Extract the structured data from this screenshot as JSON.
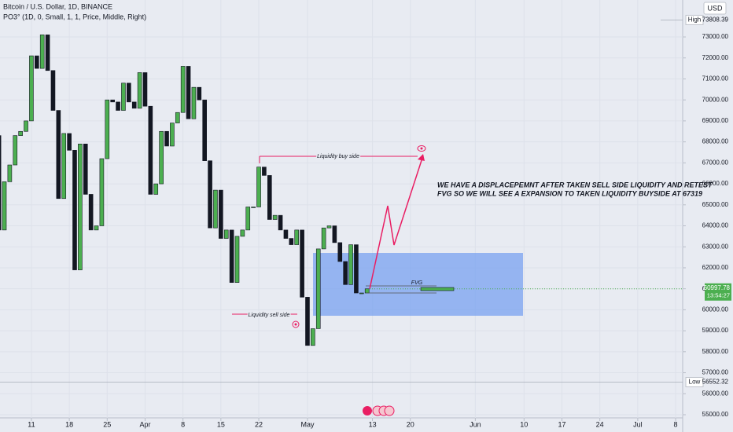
{
  "header": {
    "title": "Bitcoin / U.S. Dollar, 1D, BINANCE",
    "indicator": "PO3° (1D, 0, Small, 1, 1, Price, Middle, Right)"
  },
  "chart_data": {
    "type": "candlestick",
    "currency": "USD",
    "x": [
      -6,
      -5,
      -4,
      -3,
      -2,
      -1,
      0,
      1,
      2,
      3,
      4,
      5,
      6,
      7,
      8,
      9,
      10,
      11,
      12,
      13,
      14,
      15,
      16,
      17,
      18,
      19,
      20,
      21,
      22,
      23,
      24,
      25,
      26,
      27,
      28,
      29,
      30,
      31,
      32,
      33,
      34,
      35,
      36,
      37,
      38,
      39,
      40,
      41,
      42,
      43,
      44,
      45,
      46,
      47,
      48,
      49,
      50,
      51,
      52,
      53,
      54,
      55,
      56,
      57,
      58,
      59,
      60,
      61,
      62
    ],
    "open": [
      68300,
      63800,
      66100,
      66900,
      68300,
      68500,
      69000,
      72100,
      71500,
      73100,
      71400,
      69500,
      65300,
      68400,
      67600,
      61900,
      67900,
      65500,
      63800,
      64000,
      67200,
      70000,
      69900,
      69500,
      70800,
      69900,
      69600,
      71300,
      69700,
      65500,
      66000,
      68500,
      67800,
      68900,
      69400,
      71600,
      69100,
      70600,
      70000,
      67100,
      63900,
      65700,
      63400,
      63800,
      61300,
      63500,
      63800,
      64900,
      64900,
      66800,
      66400,
      64300,
      64500,
      63800,
      63400,
      63100,
      63800,
      60600,
      58300,
      59100,
      62900,
      63900,
      64000,
      63200,
      62300,
      61200,
      63100,
      60800,
      60800
    ],
    "high": {
      "label": "High",
      "value": 73808.39
    },
    "low": {
      "label": "Low",
      "value": 56552.32
    },
    "close": [
      63800,
      66100,
      66900,
      68300,
      68500,
      69000,
      72100,
      71500,
      73100,
      71400,
      69500,
      65300,
      68400,
      67600,
      61900,
      67900,
      65500,
      63800,
      64000,
      67200,
      70000,
      69900,
      69500,
      70800,
      69900,
      69600,
      71300,
      69700,
      65500,
      66000,
      68500,
      67800,
      68900,
      69400,
      71600,
      69100,
      70600,
      70000,
      67100,
      63900,
      65700,
      63400,
      63800,
      61300,
      63500,
      63800,
      64900,
      64900,
      66800,
      66400,
      64300,
      64500,
      63800,
      63400,
      63100,
      63800,
      60600,
      58300,
      59100,
      62900,
      63900,
      64000,
      63200,
      62300,
      61200,
      63100,
      60800,
      60800,
      60997.78
    ],
    "up_color": "#4caf50",
    "down_color": "#131722",
    "xlim": [
      -5.8,
      120.3
    ],
    "xticks": [
      {
        "value": 0,
        "label": "11"
      },
      {
        "value": 7,
        "label": "18"
      },
      {
        "value": 14,
        "label": "25"
      },
      {
        "value": 21,
        "label": "Apr"
      },
      {
        "value": 28,
        "label": "8"
      },
      {
        "value": 35,
        "label": "15"
      },
      {
        "value": 42,
        "label": "22"
      },
      {
        "value": 51,
        "label": "May"
      },
      {
        "value": 63,
        "label": "13"
      },
      {
        "value": 70,
        "label": "20"
      },
      {
        "value": 82,
        "label": "Jun"
      },
      {
        "value": 91,
        "label": "10"
      },
      {
        "value": 98,
        "label": "17"
      },
      {
        "value": 105,
        "label": "24"
      },
      {
        "value": 112,
        "label": "Jul"
      },
      {
        "value": 119,
        "label": "8"
      }
    ],
    "ylim": [
      54850,
      74760
    ],
    "yticks": [
      {
        "value": 55000,
        "label": "55000.00"
      },
      {
        "value": 56000,
        "label": "56000.00"
      },
      {
        "value": 57000,
        "label": "57000.00"
      },
      {
        "value": 58000,
        "label": "58000.00"
      },
      {
        "value": 59000,
        "label": "59000.00"
      },
      {
        "value": 60000,
        "label": "60000.00"
      },
      {
        "value": 61000,
        "label": "61000.00"
      },
      {
        "value": 62000,
        "label": "62000.00"
      },
      {
        "value": 63000,
        "label": "63000.00"
      },
      {
        "value": 64000,
        "label": "64000.00"
      },
      {
        "value": 65000,
        "label": "65000.00"
      },
      {
        "value": 66000,
        "label": "66000.00"
      },
      {
        "value": 67000,
        "label": "67000.00"
      },
      {
        "value": 68000,
        "label": "68000.00"
      },
      {
        "value": 69000,
        "label": "69000.00"
      },
      {
        "value": 70000,
        "label": "70000.00"
      },
      {
        "value": 71000,
        "label": "71000.00"
      },
      {
        "value": 72000,
        "label": "72000.00"
      },
      {
        "value": 73000,
        "label": "73000.00"
      }
    ],
    "last": {
      "value": 60997.78,
      "countdown": "13:54:27"
    },
    "annotations": {
      "buy_side": "Liquidity buy side",
      "sell_side": "Liquidity sell side",
      "fvg": "FVG",
      "note": [
        "WE HAVE A DISPLACEPEMNT AFTER TAKEN SELL SIDE LIQUIDITY AND RETEST",
        "FVG SO WE WILL SEE A EXPANSION TO TAKEN LIQUIDITY BUYSIDE AT  67319"
      ]
    }
  }
}
